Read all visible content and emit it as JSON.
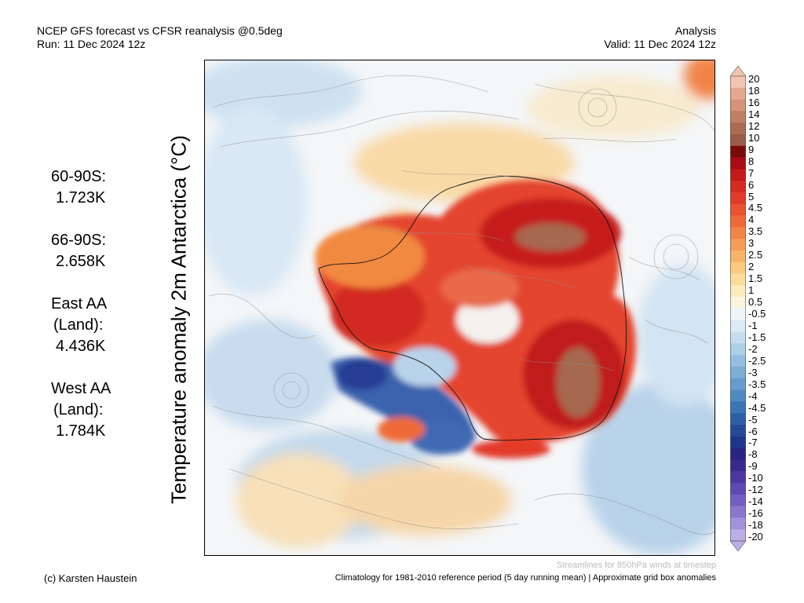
{
  "header": {
    "title": "NCEP GFS forecast vs CFSR reanalysis @0.5deg",
    "run": "Run: 11 Dec 2024 12z",
    "mode": "Analysis",
    "valid": "Valid: 11 Dec 2024 12z"
  },
  "y_label": "Temperature anomaly 2m Antarctica (°C)",
  "stats": [
    {
      "lines": [
        "60-90S:",
        "1.723K"
      ]
    },
    {
      "lines": [
        "66-90S:",
        "2.658K"
      ]
    },
    {
      "lines": [
        "East AA",
        "(Land):",
        "4.436K"
      ]
    },
    {
      "lines": [
        "West AA",
        "(Land):",
        "1.784K"
      ]
    }
  ],
  "colorbar": {
    "labels": [
      "20",
      "18",
      "16",
      "14",
      "12",
      "10",
      "9",
      "8",
      "7",
      "6",
      "5",
      "4.5",
      "4",
      "3.5",
      "3",
      "2.5",
      "2",
      "1.5",
      "1",
      "0.5",
      "-0.5",
      "-1",
      "-1.5",
      "-2",
      "-2.5",
      "-3",
      "-3.5",
      "-4",
      "-4.5",
      "-5",
      "-6",
      "-7",
      "-8",
      "-9",
      "-10",
      "-12",
      "-14",
      "-16",
      "-18",
      "-20"
    ],
    "colors": [
      "#f1c5b0",
      "#e6a98f",
      "#d8927a",
      "#c47d65",
      "#ad6a55",
      "#9a5b48",
      "#7a0a0a",
      "#a80c12",
      "#c41a1a",
      "#d62a22",
      "#e23b2a",
      "#ea5230",
      "#ef6a38",
      "#f28448",
      "#f59d58",
      "#f7b468",
      "#f9c97e",
      "#fbdc9a",
      "#fcebbd",
      "#fbf5dd",
      "#eef5fb",
      "#dceaf6",
      "#c6ddf0",
      "#aecfe8",
      "#95bfe0",
      "#7daed8",
      "#669ccd",
      "#5088c2",
      "#3c74b5",
      "#2c5ea6",
      "#234a98",
      "#1c368a",
      "#2a2580",
      "#3b2a8e",
      "#4d37a0",
      "#5f49b2",
      "#735ec2",
      "#8a76cf",
      "#a192db",
      "#bcaee6"
    ]
  },
  "footer": {
    "credit": "(c) Karsten Haustein",
    "note": "Streamlines for 850hPa winds at timestep",
    "climatology": "Climatology for 1981-2010 reference period (5 day running mean) | Approximate grid box anomalies"
  }
}
